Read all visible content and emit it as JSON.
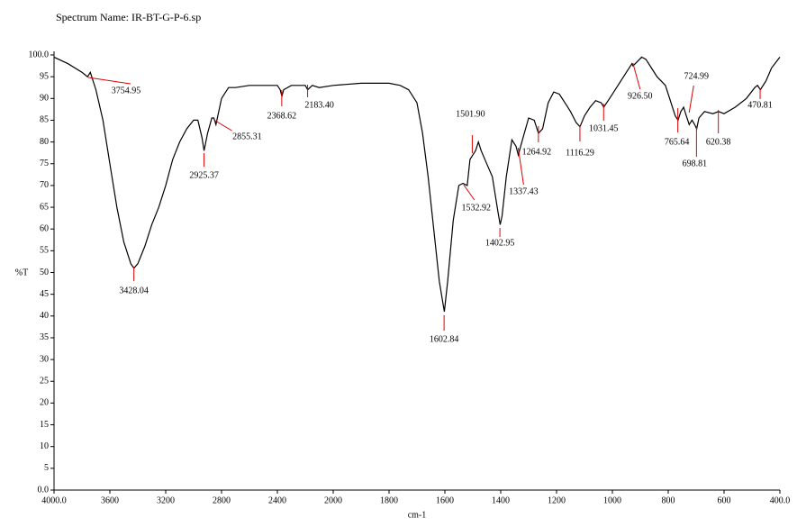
{
  "chart_data": {
    "type": "line",
    "title": "Spectrum Name: IR-BT-G-P-6.sp",
    "xlabel": "cm-1",
    "ylabel": "%T",
    "xlim": [
      4000,
      400
    ],
    "xscale": {
      "break": 2000,
      "expand_below": 2
    },
    "xticks": [
      {
        "value": 4000,
        "label": "4000.0"
      },
      3600,
      3200,
      2800,
      2400,
      2000,
      1800,
      1600,
      1400,
      1200,
      1000,
      800,
      600,
      {
        "value": 400,
        "label": "400.0"
      }
    ],
    "ylim": [
      0,
      100
    ],
    "yticks": [
      {
        "value": 0,
        "label": "0.0"
      },
      5,
      10,
      15,
      20,
      25,
      30,
      35,
      40,
      45,
      50,
      55,
      60,
      65,
      70,
      75,
      80,
      85,
      90,
      95,
      {
        "value": 100,
        "label": "100.0"
      }
    ],
    "color": "#000000",
    "annotation_color": "#e00000",
    "x": [
      4000,
      3900,
      3800,
      3760,
      3740,
      3720,
      3700,
      3650,
      3600,
      3550,
      3500,
      3450,
      3428,
      3400,
      3350,
      3300,
      3250,
      3200,
      3150,
      3100,
      3050,
      3000,
      2970,
      2940,
      2925,
      2900,
      2870,
      2855,
      2840,
      2800,
      2750,
      2700,
      2600,
      2500,
      2400,
      2380,
      2368,
      2355,
      2300,
      2200,
      2183,
      2150,
      2100,
      2000,
      1900,
      1800,
      1760,
      1730,
      1700,
      1680,
      1660,
      1640,
      1620,
      1602,
      1590,
      1570,
      1550,
      1535,
      1520,
      1510,
      1500,
      1490,
      1480,
      1470,
      1450,
      1430,
      1410,
      1402,
      1395,
      1380,
      1360,
      1345,
      1337,
      1320,
      1300,
      1280,
      1265,
      1250,
      1230,
      1210,
      1190,
      1170,
      1150,
      1130,
      1116,
      1100,
      1080,
      1060,
      1040,
      1031,
      1010,
      980,
      950,
      930,
      926,
      910,
      895,
      880,
      860,
      840,
      810,
      790,
      775,
      765,
      755,
      745,
      735,
      725,
      715,
      705,
      698,
      690,
      670,
      640,
      620,
      600,
      560,
      520,
      490,
      480,
      470,
      450,
      430,
      400
    ],
    "values": [
      99.5,
      98,
      96,
      95,
      96,
      94,
      92,
      85,
      75,
      65,
      57,
      52,
      51,
      52,
      56,
      61,
      65,
      70,
      76,
      80,
      83,
      85,
      85,
      81,
      78,
      82,
      85.5,
      85.5,
      84,
      90,
      92.5,
      92.5,
      93,
      93,
      93,
      92,
      90.5,
      92,
      93,
      93,
      92,
      93,
      92.5,
      93,
      93.5,
      93.5,
      93,
      92,
      89,
      82,
      72,
      60,
      48,
      41,
      48,
      62,
      70,
      70.5,
      70,
      76,
      77,
      78,
      80,
      78,
      75,
      72,
      64,
      61,
      63,
      72,
      80.5,
      79,
      77,
      81,
      85.5,
      85,
      82,
      83,
      89,
      91.5,
      91,
      89,
      87,
      84.5,
      83.5,
      86,
      88,
      89.5,
      89,
      88,
      90,
      93,
      96,
      98,
      97.5,
      98.5,
      99.5,
      99,
      97,
      95,
      93,
      89,
      86,
      85,
      87,
      88,
      86,
      84,
      85,
      84,
      83,
      85.5,
      87,
      86.5,
      87,
      86.5,
      88,
      90,
      92.5,
      93,
      92,
      94,
      97,
      99.5
    ],
    "peaks": [
      3754.95,
      3428.04,
      2925.37,
      2855.31,
      2368.62,
      {
        "value": 2183.4,
        "label": "2183.40"
      },
      1602.84,
      1532.92,
      {
        "value": 1501.9,
        "label": "1501.90"
      },
      1402.95,
      1337.43,
      1264.92,
      1116.29,
      1031.45,
      {
        "value": 926.5,
        "label": "926.50"
      },
      765.64,
      724.99,
      698.81,
      620.38,
      470.81
    ]
  }
}
